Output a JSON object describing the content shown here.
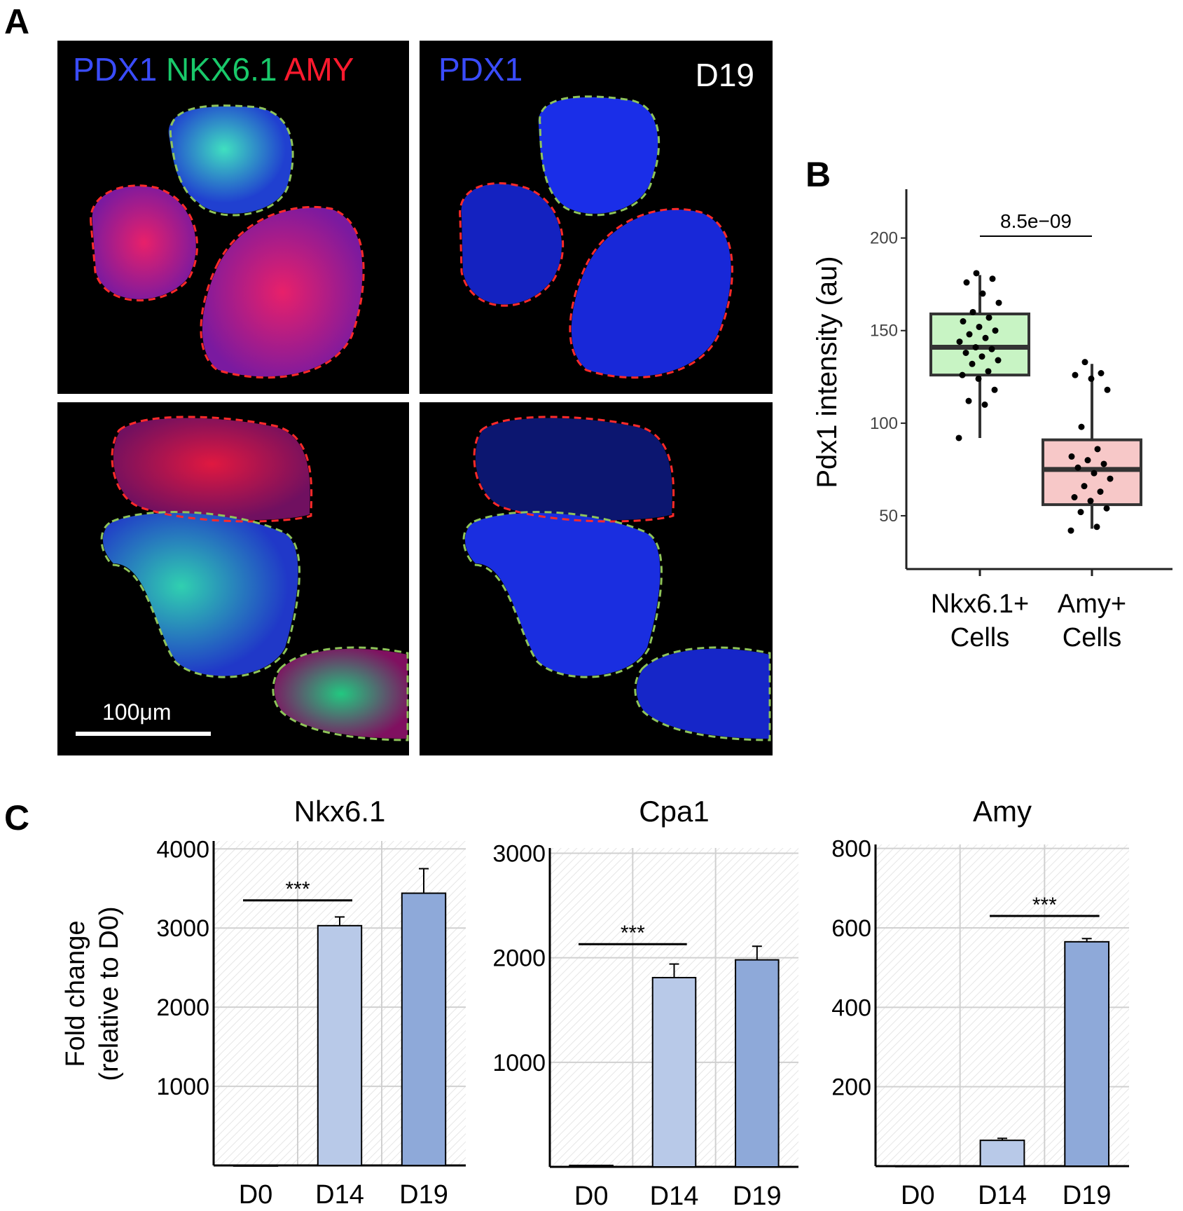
{
  "panels": {
    "a": "A",
    "b": "B",
    "c": "C"
  },
  "panel_a": {
    "stain_pdx1": "PDX1",
    "stain_nkx": "NKX6.1",
    "stain_amy": "AMY",
    "stain_pdx1_only": "PDX1",
    "day": "D19",
    "scale_label": "100μm",
    "colors": {
      "pdx1": "#2b3cff",
      "nkx": "#19c96a",
      "amy": "#ff1a2e",
      "outline_green": "#8fc45a",
      "outline_red": "#ff2a2a"
    }
  },
  "chart_data": [
    {
      "id": "B",
      "type": "box",
      "title": "",
      "ylabel": "Pdx1 intensity (au)",
      "ylim": [
        25,
        215
      ],
      "yticks": [
        50,
        100,
        150,
        200
      ],
      "categories": [
        "Nkx6.1+ Cells",
        "Amy+ Cells"
      ],
      "category_lines": [
        [
          "Nkx6.1+",
          "Cells"
        ],
        [
          "Amy+",
          "Cells"
        ]
      ],
      "boxes": [
        {
          "category": "Nkx6.1+ Cells",
          "min": 92,
          "q1": 126,
          "median": 141,
          "q3": 159,
          "max": 180,
          "fill": "#c8f4c4"
        },
        {
          "category": "Amy+ Cells",
          "min": 43,
          "q1": 56,
          "median": 75,
          "q3": 91,
          "max": 132,
          "fill": "#f7c8c8"
        }
      ],
      "points": [
        [
          92,
          110,
          112,
          118,
          124,
          126,
          128,
          132,
          134,
          136,
          138,
          140,
          141,
          144,
          146,
          148,
          150,
          152,
          155,
          157,
          160,
          165,
          170,
          176,
          178,
          181
        ],
        [
          42,
          44,
          52,
          54,
          58,
          60,
          63,
          66,
          70,
          73,
          76,
          78,
          80,
          82,
          86,
          98,
          118,
          124,
          126,
          127,
          133
        ]
      ],
      "significance": "8.5e−09",
      "colors": {
        "axis": "#222222",
        "box_stroke": "#333333",
        "point": "#000000"
      }
    },
    {
      "id": "C",
      "type": "bar",
      "ylabel": "Fold change",
      "ylabel2": "(relative to D0)",
      "colors": {
        "D14": "#b8c9e8",
        "D19": "#8ea9d9",
        "grid": "#d0d0d0",
        "hatch": "#e6e6e6"
      },
      "subplots": [
        {
          "title": "Nkx6.1",
          "categories": [
            "D0",
            "D14",
            "D19"
          ],
          "values": [
            1,
            3030,
            3440
          ],
          "errors": [
            0,
            110,
            310
          ],
          "ylim": [
            0,
            4100
          ],
          "yticks": [
            1000,
            2000,
            3000,
            4000
          ],
          "significance": {
            "from": "D0",
            "to": "D14",
            "label": "***",
            "y": 3350
          }
        },
        {
          "title": "Cpa1",
          "categories": [
            "D0",
            "D14",
            "D19"
          ],
          "values": [
            14,
            1810,
            1980
          ],
          "errors": [
            0,
            130,
            130
          ],
          "ylim": [
            0,
            3050
          ],
          "yticks": [
            1000,
            2000,
            3000
          ],
          "significance": {
            "from": "D0",
            "to": "D14",
            "label": "***",
            "y": 2130
          }
        },
        {
          "title": "Amy",
          "categories": [
            "D0",
            "D14",
            "D19"
          ],
          "values": [
            0.5,
            65,
            565
          ],
          "errors": [
            0,
            5,
            8
          ],
          "ylim": [
            0,
            810
          ],
          "yticks": [
            200,
            400,
            600,
            800
          ],
          "significance": {
            "from": "D14",
            "to": "D19",
            "label": "***",
            "y": 630
          }
        }
      ]
    }
  ]
}
